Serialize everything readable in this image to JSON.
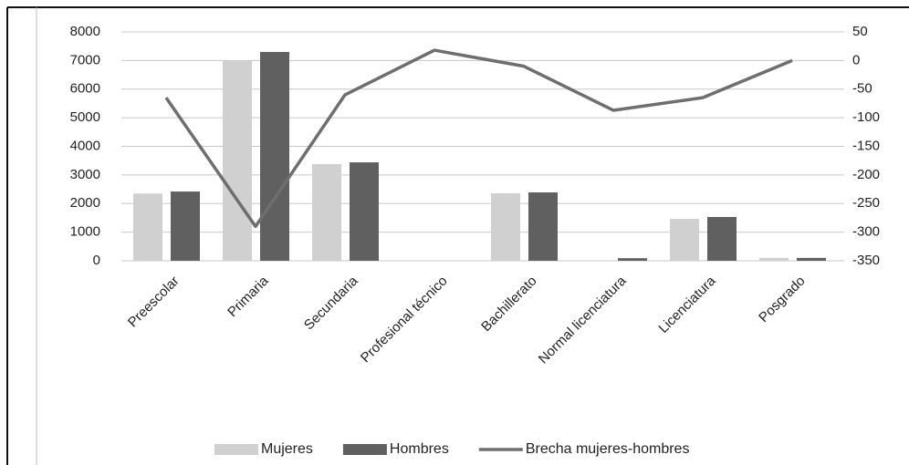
{
  "chart_data": {
    "type": "bar_line",
    "categories": [
      "Preescolar",
      "Primaria",
      "Secundaria",
      "Profesional técnico",
      "Bachillerato",
      "Normal licenciatura",
      "Licenciatura",
      "Posgrado"
    ],
    "series": [
      {
        "name": "Mujeres",
        "color": "#d0d0d0",
        "type": "bar",
        "values": [
          2350,
          7000,
          3380,
          0,
          2360,
          0,
          1465,
          100
        ]
      },
      {
        "name": "Hombres",
        "color": "#606060",
        "type": "bar",
        "values": [
          2420,
          7300,
          3440,
          0,
          2390,
          90,
          1530,
          100
        ]
      },
      {
        "name": "Brecha mujeres-hombres",
        "color": "#6e6e6e",
        "type": "line",
        "axis": "y2",
        "values": [
          -65,
          -290,
          -60,
          18,
          -10,
          -87,
          -65,
          0
        ]
      }
    ],
    "ylim": [
      0,
      8000
    ],
    "yticks": [
      0,
      1000,
      2000,
      3000,
      4000,
      5000,
      6000,
      7000,
      8000
    ],
    "y2lim": [
      -350,
      50
    ],
    "y2ticks": [
      -350,
      -300,
      -250,
      -200,
      -150,
      -100,
      -50,
      0,
      50
    ],
    "grid": true,
    "legend": "bottom"
  }
}
